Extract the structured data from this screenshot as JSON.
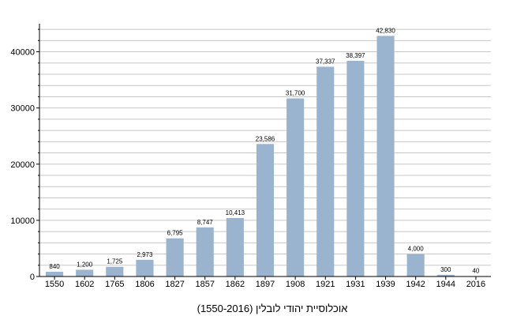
{
  "chart_data": {
    "type": "bar",
    "title": "אוכלוסיית יהודי לובלין (1550-2016)",
    "xlabel": "",
    "ylabel": "",
    "categories": [
      "1550",
      "1602",
      "1765",
      "1806",
      "1827",
      "1857",
      "1862",
      "1897",
      "1908",
      "1921",
      "1931",
      "1939",
      "1942",
      "1944",
      "2016"
    ],
    "values": [
      840,
      1200,
      1725,
      2973,
      6795,
      8747,
      10413,
      23586,
      31700,
      37337,
      38397,
      42830,
      4000,
      300,
      40
    ],
    "data_labels": [
      "840",
      "1,200",
      "1,725",
      "2,973",
      "6,795",
      "8,747",
      "10,413",
      "23,586",
      "31,700",
      "37,337",
      "38,397",
      "42,830",
      "4,000",
      "300",
      "40"
    ],
    "y_ticks": [
      "0",
      "10000",
      "20000",
      "30000",
      "40000"
    ],
    "ylim": [
      0,
      45000
    ],
    "grid": true,
    "bar_color": "#9ab3ce",
    "grid_color": "#c8c8c8"
  }
}
